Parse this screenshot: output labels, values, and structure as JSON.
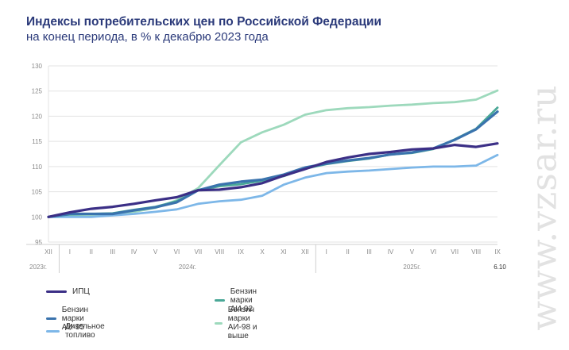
{
  "header": {
    "title": "Индексы потребительских цен по Российской Федерации",
    "subtitle": "на конец периода, в % к декабрю 2023 года"
  },
  "watermark": "www.vzsar.ru",
  "chart_data": {
    "type": "line",
    "ylim": [
      95,
      130
    ],
    "yticks": [
      95,
      100,
      105,
      110,
      115,
      120,
      125,
      130
    ],
    "grid": true,
    "legend_position": "bottom",
    "x": [
      "XII",
      "I",
      "II",
      "III",
      "IV",
      "V",
      "VI",
      "VII",
      "VIII",
      "IX",
      "X",
      "XI",
      "XII",
      "I",
      "II",
      "III",
      "IV",
      "V",
      "VI",
      "VII",
      "VIII",
      "IX"
    ],
    "year_labels": [
      "2023г.",
      "2024г.",
      "2025г."
    ],
    "end_label": "6.10",
    "series": [
      {
        "name": "ИПЦ",
        "color": "#3b2f86",
        "values": [
          100.0,
          100.9,
          101.6,
          102.0,
          102.6,
          103.3,
          103.9,
          105.3,
          105.4,
          105.9,
          106.7,
          108.2,
          109.5,
          110.9,
          111.8,
          112.5,
          112.9,
          113.4,
          113.6,
          114.3,
          113.9,
          114.6
        ]
      },
      {
        "name": "Бензин марки АИ-92",
        "color": "#4aa897",
        "values": [
          100.0,
          100.5,
          100.6,
          100.7,
          101.4,
          102.0,
          103.1,
          105.3,
          106.1,
          106.5,
          107.2,
          108.1,
          109.6,
          110.5,
          111.1,
          111.6,
          112.4,
          112.7,
          113.5,
          115.4,
          117.5,
          121.7
        ]
      },
      {
        "name": "Бензин марки АИ-95",
        "color": "#3a73ad",
        "values": [
          100.0,
          100.6,
          100.6,
          100.6,
          101.3,
          101.9,
          102.9,
          105.3,
          106.4,
          107.0,
          107.4,
          108.4,
          109.8,
          110.6,
          111.2,
          111.7,
          112.4,
          112.8,
          113.6,
          115.3,
          117.4,
          120.9
        ]
      },
      {
        "name": "Бензин марки АИ-98 и выше",
        "color": "#9dd9bc",
        "values": [
          100.0,
          100.3,
          100.4,
          100.6,
          101.0,
          101.8,
          103.3,
          105.7,
          110.3,
          114.8,
          116.8,
          118.3,
          120.3,
          121.2,
          121.6,
          121.8,
          122.1,
          122.3,
          122.6,
          122.8,
          123.3,
          125.1
        ]
      },
      {
        "name": "Дизельное топливо",
        "color": "#7db7e8",
        "values": [
          100.0,
          100.0,
          100.0,
          100.3,
          100.6,
          101.0,
          101.5,
          102.6,
          103.1,
          103.4,
          104.2,
          106.4,
          107.8,
          108.7,
          109.0,
          109.2,
          109.5,
          109.8,
          110.0,
          110.0,
          110.2,
          112.3
        ]
      }
    ]
  }
}
